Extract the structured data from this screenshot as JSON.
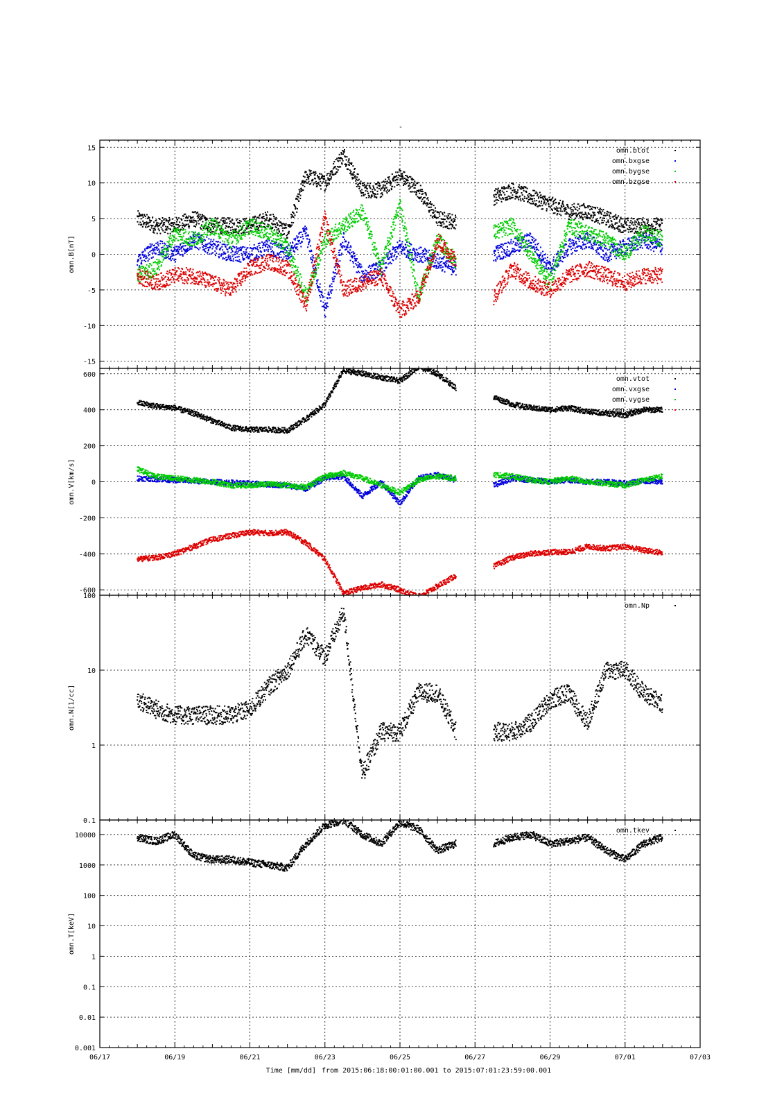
{
  "chart_data": {
    "title": "-",
    "x_ticks": [
      "06/17",
      "06/19",
      "06/21",
      "06/23",
      "06/25",
      "06/27",
      "06/29",
      "07/01",
      "07/03"
    ],
    "x_range_days": [
      0,
      16
    ],
    "data_range_days": [
      1.0,
      15.0
    ],
    "xlabel": "Time [mm/dd]",
    "time_range_text": "from 2015:06:18:00:01:00.001  to  2015:07:01:23:59:00.001",
    "legend_placement": "top-right",
    "grid": true,
    "colors": {
      "black": "#000000",
      "red": "#dd0000",
      "green": "#00cc00",
      "blue": "#0000dd"
    },
    "panels": [
      {
        "type": "scatter",
        "ylabel": "omn.B[nT]",
        "yscale": "linear",
        "ylim": [
          -16,
          16
        ],
        "yticks": [
          15,
          10,
          5,
          0,
          -5,
          -10,
          -15
        ],
        "series": [
          {
            "name": "omn.btot",
            "color": "#000000",
            "x": [
              1.0,
              1.5,
              2.0,
              2.5,
              3.0,
              3.5,
              4.0,
              4.5,
              5.0,
              5.5,
              6.0,
              6.5,
              7.0,
              7.5,
              8.0,
              8.5,
              9.0,
              9.5,
              10.0,
              10.5,
              11.0,
              11.5,
              12.0,
              12.5,
              13.0,
              13.5,
              14.0,
              14.5,
              15.0
            ],
            "y": [
              5,
              4,
              4,
              5,
              4,
              4,
              4,
              5,
              3,
              11,
              10,
              14,
              9,
              9,
              11,
              9,
              5,
              4.5,
              null,
              8,
              9,
              8,
              7,
              6,
              6,
              5,
              4,
              4,
              4
            ]
          },
          {
            "name": "omn.bxgse",
            "color": "#0000dd",
            "x": [
              1.0,
              1.5,
              2.0,
              2.5,
              3.0,
              3.5,
              4.0,
              4.5,
              5.0,
              5.5,
              6.0,
              6.5,
              7.0,
              7.5,
              8.0,
              8.5,
              9.0,
              9.5,
              10.0,
              10.5,
              11.0,
              11.5,
              12.0,
              12.5,
              13.0,
              13.5,
              14.0,
              14.5,
              15.0
            ],
            "y": [
              -1,
              1,
              0,
              2,
              1,
              0,
              0,
              1,
              0,
              3,
              -8,
              2,
              -3,
              -2,
              1,
              0,
              -1,
              -2,
              null,
              0,
              1,
              2,
              -2,
              1,
              2,
              0,
              1,
              2,
              1
            ]
          },
          {
            "name": "omn.bygse",
            "color": "#00cc00",
            "x": [
              1.0,
              1.5,
              2.0,
              2.5,
              3.0,
              3.5,
              4.0,
              4.5,
              5.0,
              5.5,
              6.0,
              6.5,
              7.0,
              7.5,
              8.0,
              8.5,
              9.0,
              9.5,
              10.0,
              10.5,
              11.0,
              11.5,
              12.0,
              12.5,
              13.0,
              13.5,
              14.0,
              14.5,
              15.0
            ],
            "y": [
              -3,
              -2,
              3,
              2,
              4,
              2,
              4,
              3,
              1,
              -6,
              2,
              4,
              6,
              -2,
              7,
              -6,
              2,
              -1,
              null,
              3,
              4,
              0,
              -4,
              4,
              3,
              2,
              0,
              3,
              2
            ]
          },
          {
            "name": "omn.bzgse",
            "color": "#dd0000",
            "x": [
              1.0,
              1.5,
              2.0,
              2.5,
              3.0,
              3.5,
              4.0,
              4.5,
              5.0,
              5.5,
              6.0,
              6.5,
              7.0,
              7.5,
              8.0,
              8.5,
              9.0,
              9.5,
              10.0,
              10.5,
              11.0,
              11.5,
              12.0,
              12.5,
              13.0,
              13.5,
              14.0,
              14.5,
              15.0
            ],
            "y": [
              -3,
              -4,
              -3,
              -3,
              -4,
              -5,
              -2,
              -1,
              -2,
              -7,
              5,
              -5,
              -4,
              -3,
              -8,
              -6,
              2,
              -1,
              null,
              -6,
              -2,
              -4,
              -5,
              -3,
              -2,
              -3,
              -4,
              -3,
              -3
            ]
          }
        ]
      },
      {
        "type": "scatter",
        "ylabel": "omn.V[km/s]",
        "yscale": "linear",
        "ylim": [
          -630,
          630
        ],
        "yticks": [
          600,
          400,
          200,
          0,
          -200,
          -400,
          -600
        ],
        "series": [
          {
            "name": "omn.vtot",
            "color": "#000000",
            "x": [
              1.0,
              1.5,
              2.0,
              2.5,
              3.0,
              3.5,
              4.0,
              4.5,
              5.0,
              5.5,
              6.0,
              6.5,
              7.0,
              7.5,
              8.0,
              8.5,
              9.0,
              9.5,
              10.0,
              10.5,
              11.0,
              11.5,
              12.0,
              12.5,
              13.0,
              13.5,
              14.0,
              14.5,
              15.0
            ],
            "y": [
              440,
              420,
              410,
              380,
              340,
              300,
              290,
              290,
              285,
              350,
              430,
              620,
              600,
              580,
              560,
              640,
              600,
              520,
              null,
              470,
              430,
              410,
              400,
              410,
              390,
              380,
              370,
              400,
              400
            ]
          },
          {
            "name": "omn.vxgse",
            "color": "#0000dd",
            "x": [
              1.0,
              1.5,
              2.0,
              2.5,
              3.0,
              3.5,
              4.0,
              4.5,
              5.0,
              5.5,
              6.0,
              6.5,
              7.0,
              7.5,
              8.0,
              8.5,
              9.0,
              9.5,
              10.0,
              10.5,
              11.0,
              11.5,
              12.0,
              12.5,
              13.0,
              13.5,
              14.0,
              14.5,
              15.0
            ],
            "y": [
              20,
              15,
              10,
              5,
              0,
              -5,
              -10,
              -15,
              -20,
              -40,
              20,
              30,
              -80,
              0,
              -120,
              20,
              40,
              10,
              null,
              -20,
              20,
              10,
              0,
              10,
              0,
              0,
              -10,
              5,
              0
            ]
          },
          {
            "name": "omn.vygse",
            "color": "#00cc00",
            "x": [
              1.0,
              1.5,
              2.0,
              2.5,
              3.0,
              3.5,
              4.0,
              4.5,
              5.0,
              5.5,
              6.0,
              6.5,
              7.0,
              7.5,
              8.0,
              8.5,
              9.0,
              9.5,
              10.0,
              10.5,
              11.0,
              11.5,
              12.0,
              12.5,
              13.0,
              13.5,
              14.0,
              14.5,
              15.0
            ],
            "y": [
              70,
              30,
              20,
              10,
              0,
              -20,
              -20,
              -10,
              -20,
              -30,
              30,
              50,
              20,
              -20,
              -60,
              10,
              30,
              20,
              null,
              40,
              30,
              10,
              0,
              20,
              0,
              -10,
              -20,
              10,
              30
            ]
          },
          {
            "name": "omn.vzgse",
            "color": "#dd0000",
            "x": [
              1.0,
              1.5,
              2.0,
              2.5,
              3.0,
              3.5,
              4.0,
              4.5,
              5.0,
              5.5,
              6.0,
              6.5,
              7.0,
              7.5,
              8.0,
              8.5,
              9.0,
              9.5,
              10.0,
              10.5,
              11.0,
              11.5,
              12.0,
              12.5,
              13.0,
              13.5,
              14.0,
              14.5,
              15.0
            ],
            "y": [
              -430,
              -420,
              -400,
              -360,
              -320,
              -300,
              -280,
              -285,
              -280,
              -340,
              -430,
              -620,
              -590,
              -570,
              -600,
              -640,
              -580,
              -520,
              null,
              -470,
              -420,
              -400,
              -390,
              -390,
              -360,
              -370,
              -360,
              -380,
              -395
            ]
          }
        ]
      },
      {
        "type": "scatter",
        "ylabel": "omn.N[1/cc]",
        "yscale": "log",
        "ylim": [
          0.1,
          100
        ],
        "yticks": [
          "100",
          "10",
          "1",
          "0.1"
        ],
        "series": [
          {
            "name": "omn.Np",
            "color": "#000000",
            "x": [
              1.0,
              1.5,
              2.0,
              2.5,
              3.0,
              3.5,
              4.0,
              4.5,
              5.0,
              5.5,
              6.0,
              6.5,
              7.0,
              7.5,
              8.0,
              8.5,
              9.0,
              9.5,
              10.0,
              10.5,
              11.0,
              11.5,
              12.0,
              12.5,
              13.0,
              13.5,
              14.0,
              14.5,
              15.0
            ],
            "y": [
              4,
              3,
              2.5,
              2.5,
              2.5,
              2.5,
              3,
              6,
              10,
              30,
              15,
              60,
              0.4,
              1.5,
              1.5,
              5,
              5,
              1.5,
              null,
              1.5,
              1.5,
              2,
              4,
              5,
              2,
              10,
              10,
              5,
              3.5
            ]
          }
        ]
      },
      {
        "type": "scatter",
        "ylabel": "omn.T[keV]",
        "yscale": "log",
        "ylim": [
          0.001,
          30000
        ],
        "yticks": [
          "10000",
          "1000",
          "100",
          "10",
          "1",
          "0.1",
          "0.01",
          "0.001"
        ],
        "series": [
          {
            "name": "omn.tkev",
            "color": "#000000",
            "x": [
              1.0,
              1.5,
              2.0,
              2.5,
              3.0,
              3.5,
              4.0,
              4.5,
              5.0,
              5.5,
              6.0,
              6.5,
              7.0,
              7.5,
              8.0,
              8.5,
              9.0,
              9.5,
              10.0,
              10.5,
              11.0,
              11.5,
              12.0,
              12.5,
              13.0,
              13.5,
              14.0,
              14.5,
              15.0
            ],
            "y": [
              8000,
              6000,
              10000,
              2000,
              1500,
              1500,
              1200,
              1000,
              800,
              5000,
              20000,
              30000,
              10000,
              5000,
              25000,
              15000,
              3000,
              5000,
              null,
              5000,
              8000,
              10000,
              5000,
              6000,
              8000,
              3000,
              1500,
              5000,
              8000
            ]
          }
        ]
      }
    ]
  }
}
